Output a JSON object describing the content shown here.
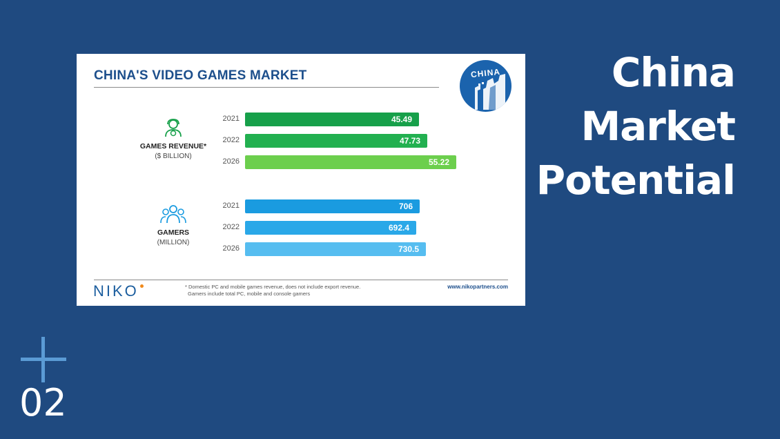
{
  "slide": {
    "heading_lines": [
      "China",
      "Market",
      "Potential"
    ],
    "section_number": "02"
  },
  "card": {
    "title": "CHINA'S VIDEO GAMES MARKET",
    "badge": "CHINA",
    "logo": "NIKO",
    "footnote_lines": [
      "* Domestic PC and mobile games revenue, does not include export revenue.",
      "Gamers include total PC, mobile and console gamers"
    ],
    "website": "www.nikopartners.com"
  },
  "icons": {
    "revenue": "gamer-money-icon",
    "gamers": "group-of-people-icon",
    "plus": "plus-icon"
  },
  "colors": {
    "background": "#1f4a80",
    "revenue_bars": [
      "#17a04a",
      "#22b050",
      "#6ccf4d"
    ],
    "gamer_bars": [
      "#1a9be0",
      "#2aa8e8",
      "#56bdf0"
    ]
  },
  "chart_data": {
    "type": "bar",
    "orientation": "horizontal",
    "title": "CHINA'S VIDEO GAMES MARKET",
    "groups": [
      {
        "name": "GAMES REVENUE*",
        "unit": "($ BILLION)",
        "categories": [
          "2021",
          "2022",
          "2026"
        ],
        "values": [
          45.49,
          47.73,
          55.22
        ],
        "labels": [
          "45.49",
          "47.73",
          "55.22"
        ]
      },
      {
        "name": "GAMERS",
        "unit": "(MILLION)",
        "categories": [
          "2021",
          "2022",
          "2026"
        ],
        "values": [
          706,
          692.4,
          730.5
        ],
        "labels": [
          "706",
          "692.4",
          "730.5"
        ]
      }
    ]
  }
}
